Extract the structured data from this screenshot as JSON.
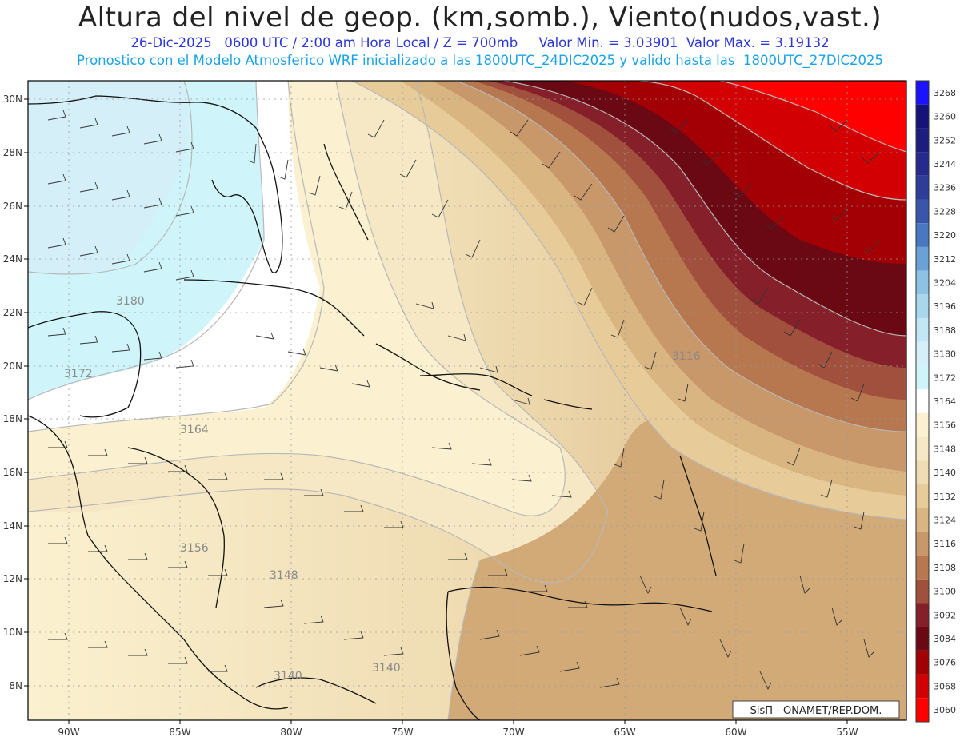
{
  "header": {
    "title": "Altura del nivel de geop. (km,somb.), Viento(nudos,vast.)",
    "subtitle_line1": "26-Dic-2025   0600 UTC / 2:00 am Hora Local / Z = 700mb     Valor Min. = 3.03901  Valor Max. = 3.19132",
    "subtitle_line2": "Pronostico con el Modelo Atmosferico WRF inicializado a las 1800UTC_24DIC2025 y valido hasta las  1800UTC_27DIC2025"
  },
  "map": {
    "lon_labels": [
      "90W",
      "85W",
      "80W",
      "75W",
      "70W",
      "65W",
      "60W",
      "55W"
    ],
    "lat_labels": [
      "30N",
      "28N",
      "26N",
      "24N",
      "22N",
      "20N",
      "18N",
      "16N",
      "14N",
      "12N",
      "10N",
      "8N"
    ],
    "contour_labels": [
      "3180",
      "3172",
      "3164",
      "3156",
      "3148",
      "3140",
      "3140",
      "3116"
    ],
    "credit": "SisΠ - ONAMET/REP.DOM."
  },
  "colorbar": {
    "levels": [
      {
        "label": "3268",
        "color": "#1b12ff"
      },
      {
        "label": "3260",
        "color": "#15137a"
      },
      {
        "label": "3252",
        "color": "#1d1d80"
      },
      {
        "label": "3244",
        "color": "#262a8c"
      },
      {
        "label": "3236",
        "color": "#2f3d9a"
      },
      {
        "label": "3228",
        "color": "#3a56aa"
      },
      {
        "label": "3220",
        "color": "#4a78c0"
      },
      {
        "label": "3212",
        "color": "#6aa2d6"
      },
      {
        "label": "3204",
        "color": "#8ec2e2"
      },
      {
        "label": "3196",
        "color": "#a8d6ec"
      },
      {
        "label": "3188",
        "color": "#c2e6f4"
      },
      {
        "label": "3180",
        "color": "#d4eff8"
      },
      {
        "label": "3172",
        "color": "#cff5fa"
      },
      {
        "label": "3164",
        "color": "#ffffff"
      },
      {
        "label": "3156",
        "color": "#fbf1d0"
      },
      {
        "label": "3148",
        "color": "#f6e8c4"
      },
      {
        "label": "3140",
        "color": "#efdcb2"
      },
      {
        "label": "3132",
        "color": "#e7cc9a"
      },
      {
        "label": "3124",
        "color": "#d9b582"
      },
      {
        "label": "3116",
        "color": "#c8976a"
      },
      {
        "label": "3108",
        "color": "#b8784f"
      },
      {
        "label": "3100",
        "color": "#a0503c"
      },
      {
        "label": "3092",
        "color": "#85202a"
      },
      {
        "label": "3084",
        "color": "#6a0814"
      },
      {
        "label": "3076",
        "color": "#a30006"
      },
      {
        "label": "3068",
        "color": "#d30003"
      },
      {
        "label": "3060",
        "color": "#ff0000"
      }
    ]
  }
}
